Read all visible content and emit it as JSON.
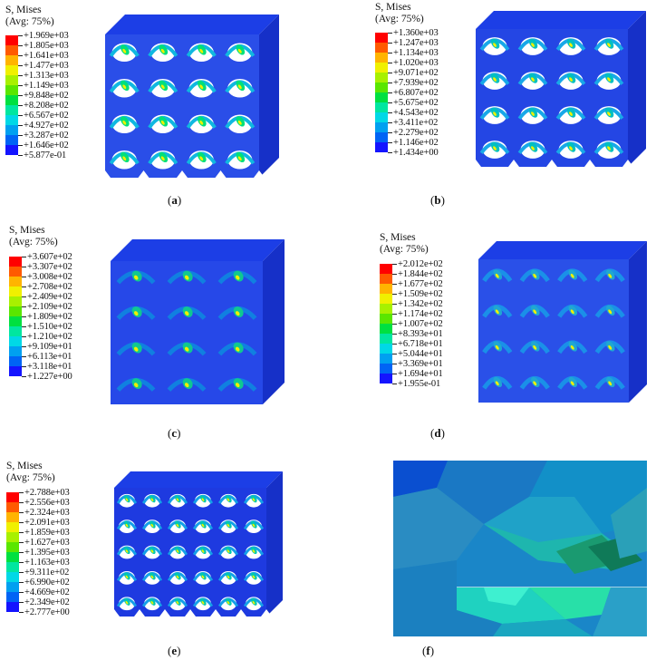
{
  "colorscale": [
    "#ff0000",
    "#ff5a00",
    "#ffb400",
    "#f0f000",
    "#a8f000",
    "#5ae600",
    "#00e040",
    "#00e6a0",
    "#00d8e6",
    "#00a0f0",
    "#0064f5",
    "#1414ff"
  ],
  "panels": [
    {
      "id": "a",
      "title": "S, Mises",
      "avg": "(Avg: 75%)",
      "caption": "a",
      "values": [
        "+1.969e+03",
        "+1.805e+03",
        "+1.641e+03",
        "+1.477e+03",
        "+1.313e+03",
        "+1.149e+03",
        "+9.848e+02",
        "+8.208e+02",
        "+6.567e+02",
        "+4.927e+02",
        "+3.287e+02",
        "+1.646e+02",
        "+5.877e-01"
      ]
    },
    {
      "id": "b",
      "title": "S, Mises",
      "avg": "(Avg: 75%)",
      "caption": "b",
      "values": [
        "+1.360e+03",
        "+1.247e+03",
        "+1.134e+03",
        "+1.020e+03",
        "+9.071e+02",
        "+7.939e+02",
        "+6.807e+02",
        "+5.675e+02",
        "+4.543e+02",
        "+3.411e+02",
        "+2.279e+02",
        "+1.146e+02",
        "+1.434e+00"
      ]
    },
    {
      "id": "c",
      "title": "S, Mises",
      "avg": "(Avg: 75%)",
      "caption": "c",
      "values": [
        "+3.607e+02",
        "+3.307e+02",
        "+3.008e+02",
        "+2.708e+02",
        "+2.409e+02",
        "+2.109e+02",
        "+1.809e+02",
        "+1.510e+02",
        "+1.210e+02",
        "+9.109e+01",
        "+6.113e+01",
        "+3.118e+01",
        "+1.227e+00"
      ]
    },
    {
      "id": "d",
      "title": "S, Mises",
      "avg": "(Avg: 75%)",
      "caption": "d",
      "values": [
        "+2.012e+02",
        "+1.844e+02",
        "+1.677e+02",
        "+1.509e+02",
        "+1.342e+02",
        "+1.174e+02",
        "+1.007e+02",
        "+8.393e+01",
        "+6.718e+01",
        "+5.044e+01",
        "+3.369e+01",
        "+1.694e+01",
        "+1.955e-01"
      ]
    },
    {
      "id": "e",
      "title": "S, Mises",
      "avg": "(Avg: 75%)",
      "caption": "e",
      "values": [
        "+2.788e+03",
        "+2.556e+03",
        "+2.324e+03",
        "+2.091e+03",
        "+1.859e+03",
        "+1.627e+03",
        "+1.395e+03",
        "+1.163e+03",
        "+9.311e+02",
        "+6.990e+02",
        "+4.669e+02",
        "+2.349e+02",
        "+2.777e+00"
      ]
    },
    {
      "id": "f",
      "caption": "f"
    }
  ]
}
